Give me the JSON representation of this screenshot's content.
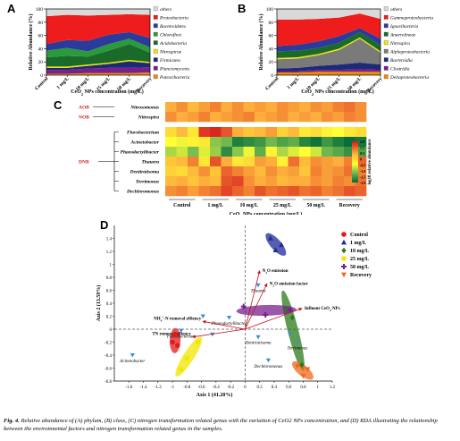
{
  "figure": {
    "caption_label": "Fig. 4.",
    "caption_text": "Relative abundance of (A) phylum, (B) class, (C) nitrogen transformation related genus with the variation of CeO2 NPs concentration, and (D) RDA illustrating the relationship between the environmental factors and nitrogen transformation related genus in the samples."
  },
  "colors": {
    "others": "#d9d9d9",
    "red": "#ee1c1c",
    "blue": "#2a3b9b",
    "green": "#1a6b2a",
    "orange": "#f08c00",
    "gray": "#7a7a7a",
    "purple": "#7a1f8c",
    "navy": "#1e2a78",
    "yellow": "#f2e600",
    "heat_low": "#006837",
    "heat_mid": "#ffff33",
    "heat_high": "#d7191c"
  },
  "chart_data": [
    {
      "panel": "A",
      "type": "area",
      "ylabel": "Relative Abundance (%)",
      "xlabel": "CeO2 NPs concentration (mg/L)",
      "categories": [
        "Control",
        "1 mg/L",
        "10 mg/L",
        "25 mg/L",
        "50 mg/L",
        "Recovery"
      ],
      "ylim": [
        0,
        100
      ],
      "yticks": [
        0,
        20,
        40,
        60,
        80,
        100
      ],
      "series": [
        {
          "name": "Patescibacteria",
          "color": "#f08c00",
          "values": [
            2,
            2,
            3,
            3,
            3,
            4
          ]
        },
        {
          "name": "Planctomycetes",
          "color": "#7a1f8c",
          "values": [
            6,
            6,
            7,
            8,
            8,
            8
          ]
        },
        {
          "name": "Firmicutes",
          "color": "#1e2a78",
          "values": [
            3,
            3,
            4,
            6,
            10,
            6
          ]
        },
        {
          "name": "Nitrospirae",
          "color": "#f2e600",
          "values": [
            2,
            2,
            2,
            2,
            2,
            2
          ]
        },
        {
          "name": "Acidobacteria",
          "color": "#1a6b2a",
          "values": [
            14,
            16,
            12,
            18,
            24,
            14
          ]
        },
        {
          "name": "Chloroflexi",
          "color": "#2a9a3c",
          "values": [
            10,
            12,
            8,
            10,
            8,
            8
          ]
        },
        {
          "name": "Bacteroidetes",
          "color": "#2a3b9b",
          "values": [
            10,
            12,
            16,
            14,
            10,
            14
          ]
        },
        {
          "name": "Proteobacteria",
          "color": "#ee1c1c",
          "values": [
            42,
            38,
            38,
            30,
            27,
            35
          ]
        },
        {
          "name": "others",
          "color": "#d9d9d9",
          "values": [
            11,
            9,
            10,
            9,
            8,
            9
          ]
        }
      ]
    },
    {
      "panel": "B",
      "type": "area",
      "ylabel": "Relative Abundance (%)",
      "xlabel": "CeO2 NPs concentration (mg/L)",
      "categories": [
        "Control",
        "1 mg/L",
        "10 mg/L",
        "25 mg/L",
        "50 mg/L",
        "Recovery"
      ],
      "ylim": [
        0,
        100
      ],
      "yticks": [
        0,
        20,
        40,
        60,
        80,
        100
      ],
      "series": [
        {
          "name": "Deltaproteobacteria",
          "color": "#f08c00",
          "values": [
            4,
            4,
            5,
            5,
            5,
            5
          ]
        },
        {
          "name": "Clostridia",
          "color": "#7a1f8c",
          "values": [
            2,
            2,
            3,
            3,
            4,
            3
          ]
        },
        {
          "name": "Bacteroidia",
          "color": "#1e2a78",
          "values": [
            4,
            5,
            6,
            8,
            10,
            8
          ]
        },
        {
          "name": "Alphaproteobacteria",
          "color": "#7a7a7a",
          "values": [
            14,
            14,
            16,
            22,
            36,
            18
          ]
        },
        {
          "name": "Nitrospira",
          "color": "#f2e600",
          "values": [
            2,
            2,
            2,
            2,
            2,
            2
          ]
        },
        {
          "name": "Anaerolineae",
          "color": "#1a6b2a",
          "values": [
            10,
            10,
            9,
            9,
            8,
            9
          ]
        },
        {
          "name": "Ignavibacteria",
          "color": "#2a3b9b",
          "values": [
            8,
            9,
            10,
            10,
            6,
            10
          ]
        },
        {
          "name": "Gammaproteobacteria",
          "color": "#ee1c1c",
          "values": [
            40,
            38,
            34,
            28,
            22,
            30
          ]
        },
        {
          "name": "others",
          "color": "#d9d9d9",
          "values": [
            16,
            16,
            15,
            13,
            7,
            15
          ]
        }
      ]
    },
    {
      "panel": "C",
      "type": "heatmap",
      "xlabel": "CeO2 NPs concentration (mg/L)",
      "group_labels": [
        "Control",
        "1 mg/L",
        "10 mg/L",
        "25 mg/L",
        "50 mg/L",
        "Recovery"
      ],
      "cells_per_group": 3,
      "legend_label": "log10 relative abundance",
      "legend_ticks": [
        "2.0",
        "1.5",
        "0.5",
        "0",
        "-0.5",
        "-1.0",
        "-1.5",
        "-2.0"
      ],
      "process_labels": [
        "AOB",
        "NOB",
        "DNB"
      ],
      "rows": [
        {
          "name": "Nitrosomonas",
          "group": "AOB",
          "values": [
            1.0,
            1.2,
            0.9,
            1.1,
            1.3,
            1.0,
            1.2,
            1.0,
            1.1,
            1.0,
            1.2,
            1.1,
            1.0,
            1.2,
            1.1,
            1.3,
            1.4,
            1.2
          ]
        },
        {
          "name": "Nitrospira",
          "group": "NOB",
          "values": [
            1.2,
            1.0,
            1.1,
            1.3,
            1.0,
            1.1,
            1.2,
            1.3,
            1.0,
            1.1,
            1.2,
            1.0,
            1.1,
            1.0,
            1.2,
            1.1,
            1.3,
            1.2
          ]
        },
        {
          "name": "Flavobacterium",
          "group": "DNB",
          "values": [
            0.6,
            0.9,
            0.5,
            1.8,
            1.9,
            1.6,
            1.0,
            0.8,
            0.9,
            1.1,
            0.7,
            0.9,
            0.5,
            0.6,
            0.4,
            0.3,
            0.5,
            0.6
          ]
        },
        {
          "name": "Acinetobacter",
          "group": "DNB",
          "values": [
            0.3,
            0.2,
            0.4,
            0.5,
            -0.4,
            -0.6,
            -1.6,
            -1.4,
            -1.2,
            -0.6,
            -1.0,
            -0.8,
            -1.5,
            -1.8,
            -1.2,
            -1.6,
            -1.9,
            -1.7
          ]
        },
        {
          "name": "Phaeodactylibacter",
          "group": "DNB",
          "values": [
            -0.2,
            0.0,
            -0.5,
            0.1,
            -0.3,
            -1.4,
            -0.4,
            0.2,
            -0.8,
            0.4,
            -0.2,
            0.1,
            0.3,
            0.0,
            -0.6,
            -0.9,
            -1.3,
            -1.0
          ]
        },
        {
          "name": "Thauera",
          "group": "DNB",
          "values": [
            0.8,
            0.9,
            1.3,
            0.5,
            1.6,
            1.0,
            0.5,
            0.6,
            1.1,
            1.0,
            0.4,
            1.4,
            0.9,
            1.2,
            1.1,
            1.0,
            1.3,
            1.5
          ]
        },
        {
          "name": "Denitratisoma",
          "group": "DNB",
          "values": [
            0.7,
            0.6,
            0.9,
            1.2,
            0.8,
            1.5,
            1.3,
            1.1,
            0.9,
            1.2,
            1.0,
            1.1,
            0.8,
            1.3,
            1.1,
            1.2,
            1.4,
            1.3
          ]
        },
        {
          "name": "Terrimonas",
          "group": "DNB",
          "values": [
            0.9,
            1.0,
            0.8,
            1.0,
            0.9,
            1.6,
            1.7,
            1.2,
            1.0,
            1.1,
            0.9,
            1.0,
            1.0,
            1.2,
            1.1,
            1.3,
            1.2,
            1.4
          ]
        },
        {
          "name": "Dechloromonas",
          "group": "DNB",
          "values": [
            1.2,
            1.3,
            1.1,
            1.3,
            1.4,
            1.7,
            1.5,
            1.3,
            1.6,
            1.4,
            1.5,
            1.6,
            1.4,
            1.5,
            1.3,
            1.4,
            1.6,
            1.5
          ]
        }
      ]
    },
    {
      "panel": "D",
      "type": "scatter",
      "xlabel": "Axis 1 (41.20%)",
      "ylabel": "Axis 2 (13.59%)",
      "xlim": [
        -1.8,
        1.2
      ],
      "ylim": [
        -0.8,
        1.6
      ],
      "xticks": [
        -1.6,
        -1.4,
        -1.2,
        -1.0,
        -0.8,
        -0.6,
        -0.4,
        -0.2,
        0,
        0.2,
        0.4,
        0.6,
        0.8,
        1.0,
        1.2
      ],
      "yticks": [
        -0.8,
        -0.6,
        -0.4,
        -0.2,
        0,
        0.2,
        0.4,
        0.6,
        0.8,
        1.0,
        1.2,
        1.4
      ],
      "legend_position": "top-right",
      "groups": [
        {
          "name": "Control",
          "marker": "circle",
          "color": "#e31a1c",
          "points": [
            [
              -0.96,
              -0.08
            ],
            [
              -1.0,
              -0.2
            ],
            [
              -0.93,
              -0.25
            ]
          ]
        },
        {
          "name": "1 mg/L",
          "marker": "triangle",
          "color": "#1f2a9a",
          "points": [
            [
              0.35,
              1.4
            ],
            [
              0.42,
              1.22
            ],
            [
              0.5,
              1.3
            ]
          ]
        },
        {
          "name": "10 mg/L",
          "marker": "diamond",
          "color": "#2a7a1a",
          "points": [
            [
              0.55,
              0.3
            ],
            [
              0.65,
              0.18
            ],
            [
              0.78,
              -0.55
            ]
          ]
        },
        {
          "name": "25 mg/L",
          "marker": "square",
          "color": "#f2e600",
          "points": [
            [
              -0.65,
              -0.2
            ],
            [
              -0.8,
              -0.45
            ],
            [
              -0.88,
              -0.62
            ]
          ]
        },
        {
          "name": "50 mg/L",
          "marker": "plus",
          "color": "#7a1f8c",
          "points": [
            [
              -0.02,
              0.35
            ],
            [
              0.28,
              0.22
            ],
            [
              0.62,
              0.3
            ]
          ]
        },
        {
          "name": "Recovery",
          "marker": "triangle-down",
          "color": "#f06a1c",
          "points": [
            [
              0.8,
              -0.72
            ],
            [
              0.86,
              -0.62
            ],
            [
              0.72,
              -0.57
            ]
          ]
        }
      ],
      "species": [
        {
          "name": "Thauera",
          "x": 0.18,
          "y": 0.68
        },
        {
          "name": "Phaeodactylibacter",
          "x": -0.22,
          "y": 0.18
        },
        {
          "name": "Flavobacterium",
          "x": -0.88,
          "y": -0.02
        },
        {
          "name": "Acinetobacter",
          "x": -1.55,
          "y": -0.4
        },
        {
          "name": "Denitratisoma",
          "x": 0.18,
          "y": -0.12
        },
        {
          "name": "Dechloromonas",
          "x": 0.32,
          "y": -0.48
        },
        {
          "name": "Terrimonas",
          "x": 0.72,
          "y": -0.2
        },
        {
          "name": "unlabeled-1",
          "x": -0.45,
          "y": -0.08
        },
        {
          "name": "unlabeled-2",
          "x": 0.62,
          "y": -0.08
        },
        {
          "name": "unlabeled-3",
          "x": -0.58,
          "y": 0.2
        }
      ],
      "arrows": [
        {
          "name": "N2O emission",
          "x": 0.2,
          "y": 0.9
        },
        {
          "name": "N2O emission factor",
          "x": 0.3,
          "y": 0.7
        },
        {
          "name": "Influent CeO2 NPs",
          "x": 0.78,
          "y": 0.32
        },
        {
          "name": "NH4+-N removal effiency",
          "x": -0.58,
          "y": 0.12
        },
        {
          "name": "TN removal effiency",
          "x": -0.72,
          "y": -0.12
        }
      ]
    }
  ]
}
